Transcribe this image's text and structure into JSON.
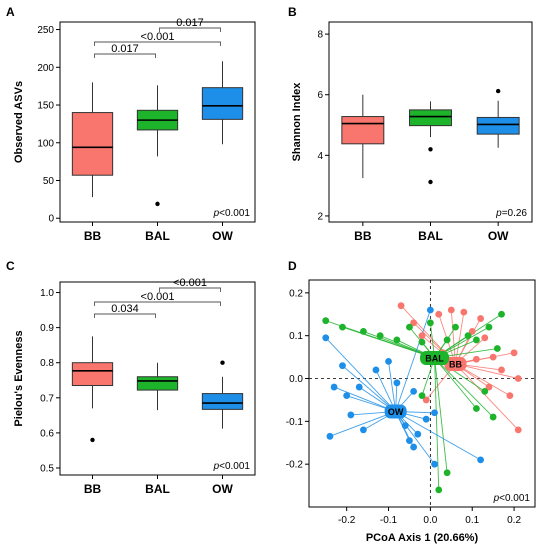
{
  "chart_data": [
    {
      "type": "box",
      "panel": "A",
      "ylabel": "Observed ASVs",
      "categories": [
        "BB",
        "BAL",
        "OW"
      ],
      "colors": [
        "#F8766D",
        "#1DB32A",
        "#1E8FE8"
      ],
      "ylim": [
        -5,
        260
      ],
      "yticks": [
        0,
        50,
        100,
        150,
        200,
        250
      ],
      "boxes": [
        {
          "group": "BB",
          "whisker_low": 28,
          "q1": 57,
          "median": 94,
          "q3": 140,
          "whisker_high": 180,
          "outliers": []
        },
        {
          "group": "BAL",
          "whisker_low": 82,
          "q1": 117,
          "median": 130,
          "q3": 143,
          "whisker_high": 176,
          "outliers": [
            19
          ]
        },
        {
          "group": "OW",
          "whisker_low": 98,
          "q1": 131,
          "median": 149,
          "q3": 173,
          "whisker_high": 208,
          "outliers": []
        }
      ],
      "brackets": [
        {
          "from": 0,
          "to": 1,
          "label": "0.017",
          "level": 0
        },
        {
          "from": 0,
          "to": 2,
          "label": "<0.001",
          "level": 1
        },
        {
          "from": 1,
          "to": 2,
          "label": "0.017",
          "level": 2
        }
      ],
      "pvalue_prefix": "p",
      "pvalue_rest": "<0.001"
    },
    {
      "type": "box",
      "panel": "B",
      "ylabel": "Shannon Index",
      "categories": [
        "BB",
        "BAL",
        "OW"
      ],
      "colors": [
        "#F8766D",
        "#1DB32A",
        "#1E8FE8"
      ],
      "ylim": [
        1.8,
        8.4
      ],
      "yticks": [
        2,
        4,
        6,
        8
      ],
      "boxes": [
        {
          "group": "BB",
          "whisker_low": 3.25,
          "q1": 4.38,
          "median": 5.05,
          "q3": 5.28,
          "whisker_high": 6.0,
          "outliers": []
        },
        {
          "group": "BAL",
          "whisker_low": 4.6,
          "q1": 4.98,
          "median": 5.28,
          "q3": 5.5,
          "whisker_high": 5.78,
          "outliers": [
            4.2,
            3.12
          ]
        },
        {
          "group": "OW",
          "whisker_low": 4.25,
          "q1": 4.7,
          "median": 5.02,
          "q3": 5.25,
          "whisker_high": 5.8,
          "outliers": [
            6.12
          ]
        }
      ],
      "brackets": [],
      "pvalue_prefix": "p",
      "pvalue_rest": "=0.26"
    },
    {
      "type": "box",
      "panel": "C",
      "ylabel": "Pielou's Evenness",
      "categories": [
        "BB",
        "BAL",
        "OW"
      ],
      "colors": [
        "#F8766D",
        "#1DB32A",
        "#1E8FE8"
      ],
      "ylim": [
        0.48,
        1.03
      ],
      "yticks": [
        0.5,
        0.6,
        0.7,
        0.8,
        0.9,
        1.0
      ],
      "ytick_labels": [
        "0.5",
        "0.6",
        "0.7",
        "0.8",
        "0.9",
        "1.0"
      ],
      "boxes": [
        {
          "group": "BB",
          "whisker_low": 0.67,
          "q1": 0.735,
          "median": 0.777,
          "q3": 0.8,
          "whisker_high": 0.875,
          "outliers": [
            0.58
          ]
        },
        {
          "group": "BAL",
          "whisker_low": 0.665,
          "q1": 0.722,
          "median": 0.748,
          "q3": 0.76,
          "whisker_high": 0.8,
          "outliers": []
        },
        {
          "group": "OW",
          "whisker_low": 0.612,
          "q1": 0.667,
          "median": 0.685,
          "q3": 0.712,
          "whisker_high": 0.76,
          "outliers": [
            0.8
          ]
        }
      ],
      "brackets": [
        {
          "from": 0,
          "to": 1,
          "label": "0.034",
          "level": 0
        },
        {
          "from": 0,
          "to": 2,
          "label": "<0.001",
          "level": 1
        },
        {
          "from": 1,
          "to": 2,
          "label": "<0.001",
          "level": 2
        }
      ],
      "pvalue_prefix": "p",
      "pvalue_rest": "<0.001"
    },
    {
      "type": "scatter",
      "panel": "D",
      "xlabel": "PCoA Axis 1 (20.66%)",
      "xlim": [
        -0.29,
        0.25
      ],
      "ylim": [
        -0.3,
        0.23
      ],
      "xticks": [
        -0.2,
        -0.1,
        0.0,
        0.1,
        0.2
      ],
      "xtick_labels": [
        "-0.2",
        "-0.1",
        "0.0",
        "0.1",
        "0.2"
      ],
      "yticks": [
        -0.2,
        -0.1,
        0.0,
        0.1,
        0.2
      ],
      "ytick_labels": [
        "-0.2",
        "-0.1",
        "0.0",
        "0.1",
        "0.2"
      ],
      "series": [
        {
          "name": "BB",
          "color": "#F8766D",
          "centroid": [
            0.06,
            0.034
          ],
          "points": [
            [
              -0.07,
              0.17
            ],
            [
              -0.04,
              0.13
            ],
            [
              -0.02,
              0.1
            ],
            [
              0.02,
              0.15
            ],
            [
              0.05,
              0.16
            ],
            [
              0.08,
              0.155
            ],
            [
              0.1,
              0.11
            ],
            [
              0.13,
              0.095
            ],
            [
              0.11,
              0.045
            ],
            [
              0.15,
              0.05
            ],
            [
              0.2,
              0.06
            ],
            [
              0.17,
              0.02
            ],
            [
              0.21,
              0.0
            ],
            [
              0.14,
              -0.02
            ],
            [
              0.19,
              -0.04
            ],
            [
              0.21,
              -0.12
            ],
            [
              -0.01,
              -0.05
            ],
            [
              0.03,
              0.06
            ],
            [
              0.12,
              0.14
            ]
          ]
        },
        {
          "name": "BAL",
          "color": "#1DB32A",
          "centroid": [
            0.01,
            0.048
          ],
          "points": [
            [
              -0.25,
              0.135
            ],
            [
              -0.21,
              0.12
            ],
            [
              -0.16,
              0.11
            ],
            [
              -0.12,
              0.1
            ],
            [
              -0.08,
              0.09
            ],
            [
              -0.05,
              0.12
            ],
            [
              -0.02,
              0.085
            ],
            [
              0.0,
              0.13
            ],
            [
              0.04,
              0.09
            ],
            [
              0.06,
              0.12
            ],
            [
              0.09,
              0.1
            ],
            [
              0.11,
              0.09
            ],
            [
              0.14,
              0.12
            ],
            [
              0.17,
              0.15
            ],
            [
              0.16,
              0.07
            ],
            [
              0.13,
              -0.03
            ],
            [
              0.11,
              -0.07
            ],
            [
              0.15,
              -0.09
            ],
            [
              0.04,
              -0.22
            ],
            [
              0.02,
              -0.26
            ],
            [
              -0.02,
              -0.04
            ]
          ]
        },
        {
          "name": "OW",
          "color": "#1E8FE8",
          "centroid": [
            -0.083,
            -0.077
          ],
          "points": [
            [
              -0.25,
              0.095
            ],
            [
              -0.24,
              -0.135
            ],
            [
              -0.19,
              -0.085
            ],
            [
              -0.21,
              0.03
            ],
            [
              -0.17,
              -0.02
            ],
            [
              -0.2,
              -0.04
            ],
            [
              -0.23,
              -0.02
            ],
            [
              -0.16,
              -0.12
            ],
            [
              -0.13,
              0.02
            ],
            [
              -0.1,
              0.04
            ],
            [
              -0.08,
              -0.01
            ],
            [
              -0.06,
              -0.11
            ],
            [
              -0.05,
              -0.145
            ],
            [
              -0.04,
              -0.16
            ],
            [
              -0.03,
              -0.13
            ],
            [
              -0.01,
              -0.095
            ],
            [
              0.01,
              -0.08
            ],
            [
              0.01,
              -0.2
            ],
            [
              0.12,
              -0.19
            ],
            [
              0.0,
              0.16
            ],
            [
              -0.04,
              -0.03
            ]
          ]
        }
      ],
      "pvalue_prefix": "p",
      "pvalue_rest": "<0.001"
    }
  ]
}
